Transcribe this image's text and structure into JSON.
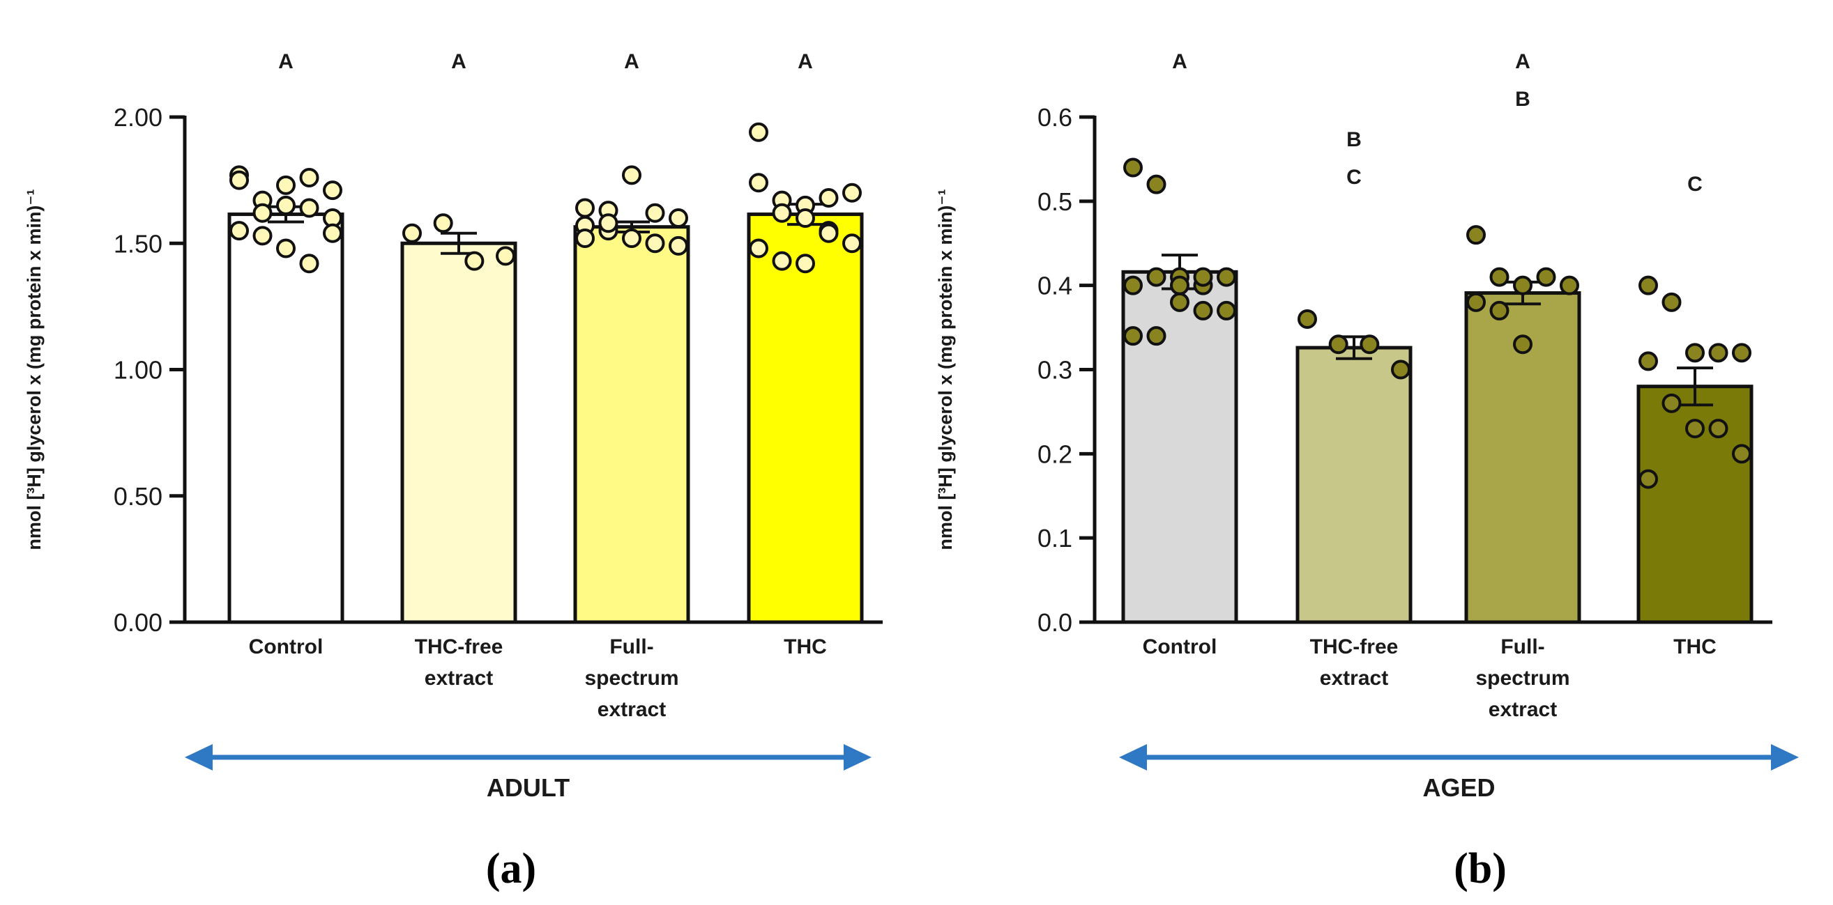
{
  "chart_data": [
    {
      "type": "bar",
      "panel_label": "(a)",
      "ylabel": "nmol [³H] glycerol x (mg protein x min)⁻¹",
      "ylim": [
        0,
        2.0
      ],
      "yticks": [
        0.0,
        0.5,
        1.0,
        1.5,
        2.0
      ],
      "ytick_labels": [
        "0.00",
        "0.50",
        "1.00",
        "1.50",
        "2.00"
      ],
      "group_label": "ADULT",
      "arrow_color": "#2f78c4",
      "point_color": "#fff8b8",
      "categories": [
        {
          "label_lines": [
            "Control"
          ],
          "mean": 1.615,
          "sem": 0.03,
          "color": "#ffffff",
          "letters": [
            "A"
          ],
          "points": [
            1.77,
            1.67,
            1.73,
            1.76,
            1.71,
            1.75,
            1.62,
            1.65,
            1.64,
            1.6,
            1.55,
            1.53,
            1.48,
            1.42,
            1.54
          ]
        },
        {
          "label_lines": [
            "THC-free",
            "extract"
          ],
          "mean": 1.5,
          "sem": 0.04,
          "color": "#fffbcc",
          "letters": [
            "A"
          ],
          "points": [
            1.54,
            1.58,
            1.43,
            1.45
          ]
        },
        {
          "label_lines": [
            "Full-",
            "spectrum",
            "extract"
          ],
          "mean": 1.565,
          "sem": 0.02,
          "color": "#fffa85",
          "letters": [
            "A"
          ],
          "points": [
            1.64,
            1.63,
            1.77,
            1.62,
            1.6,
            1.57,
            1.55,
            1.52,
            1.5,
            1.49,
            1.52,
            1.58
          ]
        },
        {
          "label_lines": [
            "THC"
          ],
          "mean": 1.615,
          "sem": 0.04,
          "color": "#ffff00",
          "letters": [
            "A"
          ],
          "points": [
            1.94,
            1.67,
            1.65,
            1.68,
            1.7,
            1.74,
            1.62,
            1.6,
            1.55,
            1.5,
            1.48,
            1.43,
            1.42,
            1.54
          ]
        }
      ]
    },
    {
      "type": "bar",
      "panel_label": "(b)",
      "ylabel": "nmol [³H] glycerol x (mg protein x min)⁻¹",
      "ylim": [
        0,
        0.6
      ],
      "yticks": [
        0.0,
        0.1,
        0.2,
        0.3,
        0.4,
        0.5,
        0.6
      ],
      "ytick_labels": [
        "0.0",
        "0.1",
        "0.2",
        "0.3",
        "0.4",
        "0.5",
        "0.6"
      ],
      "group_label": "AGED",
      "arrow_color": "#2f78c4",
      "point_color": "#8a8420",
      "categories": [
        {
          "label_lines": [
            "Control"
          ],
          "mean": 0.416,
          "sem": 0.02,
          "color": "#d9d9d9",
          "letters": [
            "A"
          ],
          "points": [
            0.54,
            0.52,
            0.41,
            0.4,
            0.41,
            0.4,
            0.41,
            0.38,
            0.37,
            0.37,
            0.34,
            0.34,
            0.4,
            0.41
          ]
        },
        {
          "label_lines": [
            "THC-free",
            "extract"
          ],
          "mean": 0.326,
          "sem": 0.013,
          "color": "#c8c78a",
          "letters": [
            "B",
            "C"
          ],
          "points": [
            0.36,
            0.33,
            0.33,
            0.3
          ]
        },
        {
          "label_lines": [
            "Full-",
            "spectrum",
            "extract"
          ],
          "mean": 0.391,
          "sem": 0.013,
          "color": "#a9a64a",
          "letters": [
            "A",
            "B"
          ],
          "points": [
            0.46,
            0.41,
            0.4,
            0.41,
            0.4,
            0.38,
            0.37,
            0.33
          ]
        },
        {
          "label_lines": [
            "THC"
          ],
          "mean": 0.28,
          "sem": 0.022,
          "color": "#7a7a08",
          "letters": [
            "C"
          ],
          "points": [
            0.4,
            0.38,
            0.32,
            0.32,
            0.32,
            0.31,
            0.26,
            0.23,
            0.23,
            0.2,
            0.17
          ]
        }
      ]
    }
  ]
}
